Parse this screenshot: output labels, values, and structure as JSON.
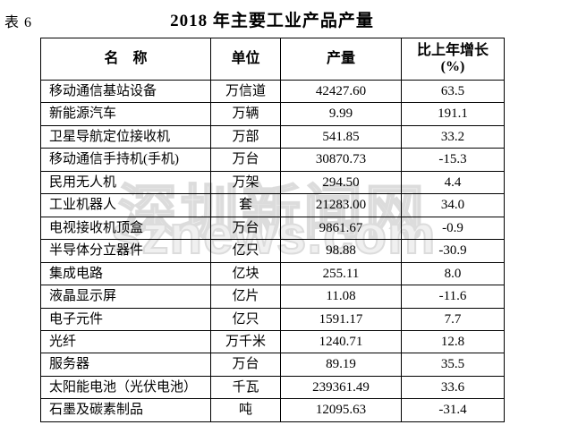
{
  "label": "表 6",
  "title": "2018 年主要工业产品产量",
  "watermark": {
    "line1": "深圳新闻网",
    "line2": "sznews.com"
  },
  "table": {
    "headers": {
      "name": "名　称",
      "unit": "单位",
      "output": "产量",
      "growth_line1": "比上年增长",
      "growth_line2": "(%)"
    },
    "rows": [
      {
        "name": "移动通信基站设备",
        "unit": "万信道",
        "output": "42427.60",
        "growth": "63.5"
      },
      {
        "name": "新能源汽车",
        "unit": "万辆",
        "output": "9.99",
        "growth": "191.1"
      },
      {
        "name": "卫星导航定位接收机",
        "unit": "万部",
        "output": "541.85",
        "growth": "33.2"
      },
      {
        "name": "移动通信手持机(手机)",
        "unit": "万台",
        "output": "30870.73",
        "growth": "-15.3"
      },
      {
        "name": "民用无人机",
        "unit": "万架",
        "output": "294.50",
        "growth": "4.4"
      },
      {
        "name": "工业机器人",
        "unit": "套",
        "output": "21283.00",
        "growth": "34.0"
      },
      {
        "name": "电视接收机顶盒",
        "unit": "万台",
        "output": "9861.67",
        "growth": "-0.9"
      },
      {
        "name": "半导体分立器件",
        "unit": "亿只",
        "output": "98.88",
        "growth": "-30.9"
      },
      {
        "name": "集成电路",
        "unit": "亿块",
        "output": "255.11",
        "growth": "8.0"
      },
      {
        "name": "液晶显示屏",
        "unit": "亿片",
        "output": "11.08",
        "growth": "-11.6"
      },
      {
        "name": "电子元件",
        "unit": "亿只",
        "output": "1591.17",
        "growth": "7.7"
      },
      {
        "name": "光纤",
        "unit": "万千米",
        "output": "1240.71",
        "growth": "12.8"
      },
      {
        "name": "服务器",
        "unit": "万台",
        "output": "89.19",
        "growth": "35.5"
      },
      {
        "name": "太阳能电池（光伏电池）",
        "unit": "千瓦",
        "output": "239361.49",
        "growth": "33.6"
      },
      {
        "name": "石墨及碳素制品",
        "unit": "吨",
        "output": "12095.63",
        "growth": "-31.4"
      }
    ]
  }
}
